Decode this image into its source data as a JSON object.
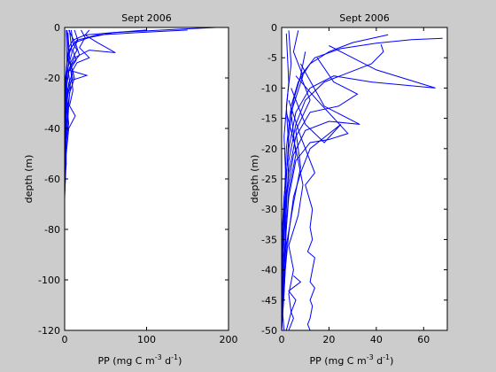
{
  "figure": {
    "background": "#cccccc",
    "axes_background": "#ffffff",
    "line_color": "#0000ff"
  },
  "chart_data": [
    {
      "type": "line",
      "title": "Sept 2006",
      "xlabel": "PP (mg C m-3 d-1)",
      "xlabel_parts": {
        "base": "PP (mg C m",
        "exp1": "-3",
        "mid": " d",
        "exp2": "-1",
        "end": ")"
      },
      "ylabel": "depth (m)",
      "xlim": [
        0,
        200
      ],
      "ylim": [
        -120,
        0
      ],
      "xticks": [
        "0",
        "100",
        "200"
      ],
      "yticks": [
        "0",
        "-20",
        "-40",
        "-60",
        "-80",
        "-100",
        "-120"
      ],
      "series": [
        {
          "values": [
            [
              185,
              0
            ],
            [
              120,
              -1
            ],
            [
              60,
              -2
            ],
            [
              25,
              -3
            ],
            [
              10,
              -5
            ],
            [
              5,
              -8
            ],
            [
              3,
              -12
            ],
            [
              2,
              -18
            ],
            [
              1,
              -25
            ],
            [
              1,
              -35
            ],
            [
              0,
              -45
            ]
          ]
        },
        {
          "values": [
            [
              150,
              -1
            ],
            [
              90,
              -2
            ],
            [
              40,
              -3
            ],
            [
              15,
              -5
            ],
            [
              8,
              -8
            ],
            [
              4,
              -12
            ],
            [
              2,
              -18
            ],
            [
              1,
              -24
            ],
            [
              0,
              -30
            ]
          ]
        },
        {
          "values": [
            [
              100,
              -1
            ],
            [
              60,
              -2
            ],
            [
              30,
              -4
            ],
            [
              12,
              -6
            ],
            [
              6,
              -9
            ],
            [
              3,
              -14
            ],
            [
              1,
              -20
            ],
            [
              0,
              -28
            ]
          ]
        },
        {
          "values": [
            [
              30,
              -1
            ],
            [
              25,
              -3
            ],
            [
              40,
              -6
            ],
            [
              62,
              -10
            ],
            [
              30,
              -9
            ],
            [
              12,
              -12
            ],
            [
              6,
              -16
            ],
            [
              3,
              -22
            ],
            [
              2,
              -30
            ],
            [
              1,
              -38
            ],
            [
              0,
              -48
            ]
          ]
        },
        {
          "values": [
            [
              20,
              -1
            ],
            [
              25,
              -4
            ],
            [
              18,
              -8
            ],
            [
              30,
              -12
            ],
            [
              15,
              -14
            ],
            [
              8,
              -18
            ],
            [
              10,
              -20
            ],
            [
              4,
              -24
            ],
            [
              2,
              -32
            ],
            [
              1,
              -45
            ],
            [
              0,
              -55
            ]
          ]
        },
        {
          "values": [
            [
              12,
              -1
            ],
            [
              16,
              -5
            ],
            [
              10,
              -9
            ],
            [
              14,
              -13
            ],
            [
              6,
              -17
            ],
            [
              27,
              -19
            ],
            [
              8,
              -21
            ],
            [
              3,
              -28
            ],
            [
              2,
              -40
            ],
            [
              1,
              -52
            ],
            [
              0,
              -65
            ]
          ]
        },
        {
          "values": [
            [
              8,
              -1
            ],
            [
              10,
              -6
            ],
            [
              15,
              -9
            ],
            [
              7,
              -14
            ],
            [
              10,
              -18
            ],
            [
              5,
              -22
            ],
            [
              3,
              -30
            ],
            [
              1,
              -42
            ],
            [
              0,
              -60
            ],
            [
              0,
              -70
            ]
          ]
        },
        {
          "values": [
            [
              5,
              -1
            ],
            [
              14,
              -7
            ],
            [
              18,
              -11
            ],
            [
              8,
              -15
            ],
            [
              12,
              -20
            ],
            [
              6,
              -26
            ],
            [
              4,
              -36
            ],
            [
              2,
              -46
            ],
            [
              1,
              -58
            ],
            [
              0,
              -68
            ]
          ]
        },
        {
          "values": [
            [
              6,
              -1
            ],
            [
              9,
              -10
            ],
            [
              4,
              -16
            ],
            [
              7,
              -24
            ],
            [
              3,
              -33
            ],
            [
              5,
              -38
            ],
            [
              2,
              -45
            ],
            [
              1,
              -55
            ],
            [
              0,
              -62
            ]
          ]
        },
        {
          "values": [
            [
              4,
              -2
            ],
            [
              6,
              -12
            ],
            [
              10,
              -25
            ],
            [
              6,
              -31
            ],
            [
              13,
              -35
            ],
            [
              5,
              -40
            ],
            [
              2,
              -50
            ],
            [
              1,
              -60
            ],
            [
              0,
              -66
            ]
          ]
        },
        {
          "values": [
            [
              3,
              -1
            ],
            [
              5,
              -14
            ],
            [
              2,
              -22
            ],
            [
              4,
              -34
            ],
            [
              1,
              -44
            ],
            [
              2,
              -54
            ],
            [
              0,
              -60
            ]
          ]
        },
        {
          "values": [
            [
              2,
              -1
            ],
            [
              3,
              -18
            ],
            [
              1,
              -30
            ],
            [
              2,
              -42
            ],
            [
              0,
              -52
            ]
          ]
        }
      ]
    },
    {
      "type": "line",
      "title": "Sept 2006",
      "xlabel": "PP (mg C m-3 d-1)",
      "xlabel_parts": {
        "base": "PP (mg C m",
        "exp1": "-3",
        "mid": " d",
        "exp2": "-1",
        "end": ")"
      },
      "ylabel": "depth (m)",
      "xlim": [
        0,
        70
      ],
      "ylim": [
        -50,
        0
      ],
      "xticks": [
        "0",
        "20",
        "40",
        "60"
      ],
      "yticks": [
        "0",
        "-5",
        "-10",
        "-15",
        "-20",
        "-25",
        "-30",
        "-35",
        "-40",
        "-45",
        "-50"
      ],
      "series": [
        {
          "values": [
            [
              68,
              -1.8
            ],
            [
              55,
              -2.0
            ],
            [
              40,
              -2.6
            ],
            [
              25,
              -3.5
            ],
            [
              14,
              -5
            ],
            [
              8,
              -8
            ],
            [
              5,
              -12
            ],
            [
              3,
              -18
            ],
            [
              2,
              -25
            ],
            [
              1,
              -33
            ],
            [
              0,
              -40
            ]
          ]
        },
        {
          "values": [
            [
              45,
              -1.2
            ],
            [
              30,
              -2.5
            ],
            [
              20,
              -4
            ],
            [
              12,
              -6
            ],
            [
              7,
              -9
            ],
            [
              4,
              -13
            ],
            [
              2,
              -20
            ],
            [
              1,
              -30
            ],
            [
              0,
              -38
            ]
          ]
        },
        {
          "values": [
            [
              42,
              -2.8
            ],
            [
              43,
              -4
            ],
            [
              38,
              -6
            ],
            [
              28,
              -7.5
            ],
            [
              18,
              -9
            ],
            [
              10,
              -12
            ],
            [
              6,
              -16
            ],
            [
              3,
              -22
            ],
            [
              2,
              -30
            ],
            [
              1,
              -40
            ],
            [
              0,
              -46
            ]
          ]
        },
        {
          "values": [
            [
              20,
              -3
            ],
            [
              40,
              -7
            ],
            [
              65,
              -10
            ],
            [
              38,
              -9
            ],
            [
              22,
              -8
            ],
            [
              12,
              -10
            ],
            [
              6,
              -14
            ],
            [
              3,
              -20
            ],
            [
              1,
              -28
            ],
            [
              0,
              -35
            ]
          ]
        },
        {
          "values": [
            [
              15,
              -5
            ],
            [
              22,
              -9
            ],
            [
              32,
              -11
            ],
            [
              24,
              -13
            ],
            [
              12,
              -14
            ],
            [
              6,
              -18
            ],
            [
              3,
              -24
            ],
            [
              1,
              -32
            ],
            [
              0,
              -42
            ]
          ]
        },
        {
          "values": [
            [
              8,
              -6
            ],
            [
              18,
              -13
            ],
            [
              33,
              -16
            ],
            [
              20,
              -15.5
            ],
            [
              10,
              -17
            ],
            [
              5,
              -21
            ],
            [
              2,
              -28
            ],
            [
              0,
              -36
            ]
          ]
        },
        {
          "values": [
            [
              6,
              -8
            ],
            [
              15,
              -12
            ],
            [
              28,
              -17.5
            ],
            [
              20,
              -18.5
            ],
            [
              12,
              -19
            ],
            [
              6,
              -22
            ],
            [
              3,
              -28
            ],
            [
              1,
              -38
            ],
            [
              0,
              -46
            ]
          ]
        },
        {
          "values": [
            [
              4,
              -10
            ],
            [
              10,
              -16
            ],
            [
              18,
              -19
            ],
            [
              25,
              -16
            ],
            [
              12,
              -20
            ],
            [
              8,
              -24
            ],
            [
              5,
              -28
            ],
            [
              3,
              -34
            ],
            [
              1,
              -42
            ],
            [
              0,
              -48
            ]
          ]
        },
        {
          "values": [
            [
              3,
              -12
            ],
            [
              8,
              -18
            ],
            [
              14,
              -24
            ],
            [
              10,
              -26
            ],
            [
              13,
              -30
            ],
            [
              12,
              -33
            ],
            [
              13,
              -35
            ],
            [
              11,
              -37
            ],
            [
              14,
              -38
            ],
            [
              13,
              -40
            ],
            [
              12,
              -42
            ],
            [
              14,
              -43
            ],
            [
              12,
              -45
            ],
            [
              13,
              -46
            ],
            [
              12,
              -48
            ],
            [
              11,
              -49
            ],
            [
              12,
              -50
            ]
          ]
        },
        {
          "values": [
            [
              2,
              -14
            ],
            [
              6,
              -20
            ],
            [
              9,
              -26
            ],
            [
              7,
              -31
            ],
            [
              3,
              -36
            ],
            [
              5,
              -40
            ],
            [
              3,
              -44
            ],
            [
              4,
              -47
            ],
            [
              2,
              -50
            ]
          ]
        },
        {
          "values": [
            [
              10,
              -4
            ],
            [
              8,
              -8
            ],
            [
              12,
              -12
            ],
            [
              6,
              -17
            ],
            [
              8,
              -23
            ],
            [
              5,
              -29
            ],
            [
              2,
              -36
            ],
            [
              1,
              -44
            ],
            [
              0,
              -50
            ]
          ]
        },
        {
          "values": [
            [
              7,
              -0.5
            ],
            [
              5,
              -4
            ],
            [
              9,
              -8
            ],
            [
              4,
              -14
            ],
            [
              6,
              -21
            ],
            [
              3,
              -27
            ],
            [
              2,
              -33
            ],
            [
              1,
              -41
            ],
            [
              0,
              -50
            ]
          ]
        },
        {
          "values": [
            [
              3,
              -0.5
            ],
            [
              4,
              -6
            ],
            [
              2,
              -13
            ],
            [
              3,
              -20
            ],
            [
              1,
              -28
            ],
            [
              2,
              -37
            ],
            [
              0,
              -50
            ]
          ]
        },
        {
          "values": [
            [
              2,
              -1
            ],
            [
              3,
              -9
            ],
            [
              1,
              -18
            ],
            [
              2,
              -27
            ],
            [
              1,
              -35
            ],
            [
              0,
              -45
            ],
            [
              1,
              -50
            ]
          ]
        },
        {
          "values": [
            [
              5,
              -41
            ],
            [
              8,
              -42
            ],
            [
              3,
              -43.5
            ],
            [
              6,
              -45
            ],
            [
              4,
              -47
            ],
            [
              5,
              -48
            ],
            [
              3,
              -50
            ]
          ]
        }
      ]
    }
  ]
}
